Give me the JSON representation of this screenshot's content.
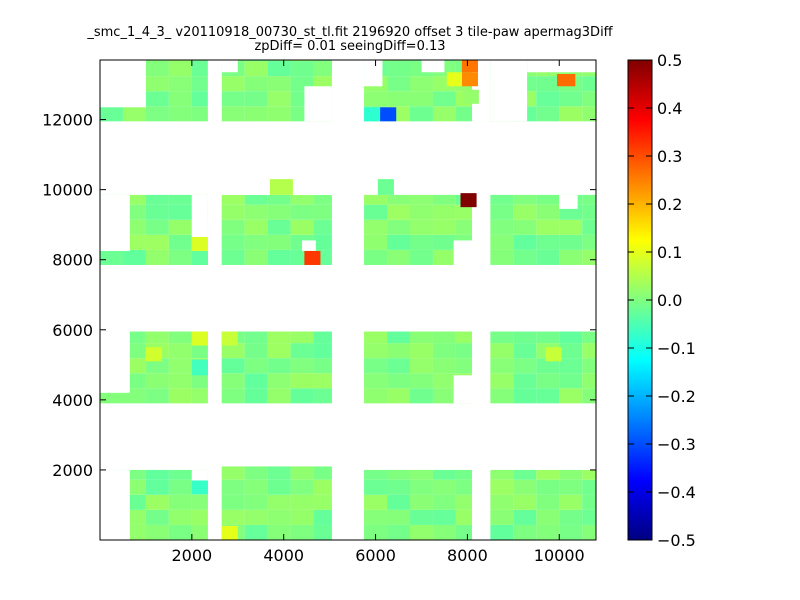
{
  "chart_data": {
    "type": "heatmap",
    "title": "_smc_1_4_3_ v20110918_00730_st_tl.fit 2196920 offset 3 tile-paw apermag3Diff",
    "subtitle": "zpDiff= 0.01 seeingDiff=0.13",
    "xlabel": "",
    "ylabel": "",
    "xlim": [
      0,
      10800
    ],
    "ylim": [
      0,
      13700
    ],
    "xticks": [
      2000,
      4000,
      6000,
      8000,
      10000
    ],
    "yticks": [
      2000,
      4000,
      6000,
      8000,
      10000,
      12000
    ],
    "colorbar": {
      "colormap": "jet",
      "vmin": -0.5,
      "vmax": 0.5,
      "ticks": [
        0.5,
        0.4,
        0.3,
        0.2,
        0.1,
        0.0,
        -0.1,
        -0.2,
        -0.3,
        -0.4,
        -0.5
      ],
      "tick_labels": [
        "0.5",
        "0.4",
        "0.3",
        "0.2",
        "0.1",
        "0.0",
        "−0.1",
        "−0.2",
        "−0.3",
        "−0.4",
        "−0.5"
      ]
    },
    "cell_width": 500,
    "cell_height": 430,
    "default_value": 0.0,
    "regions": [
      {
        "x": [
          0,
          2350
        ],
        "y": [
          0,
          2000
        ]
      },
      {
        "x": [
          2650,
          5050
        ],
        "y": [
          0,
          2100
        ]
      },
      {
        "x": [
          5750,
          8100
        ],
        "y": [
          0,
          2000
        ]
      },
      {
        "x": [
          8500,
          10800
        ],
        "y": [
          0,
          2000
        ]
      },
      {
        "x": [
          0,
          2350
        ],
        "y": [
          3900,
          5950
        ]
      },
      {
        "x": [
          2650,
          5050
        ],
        "y": [
          3900,
          5950
        ]
      },
      {
        "x": [
          5750,
          8100
        ],
        "y": [
          3900,
          5950
        ]
      },
      {
        "x": [
          8500,
          10800
        ],
        "y": [
          3900,
          5950
        ]
      },
      {
        "x": [
          0,
          2350
        ],
        "y": [
          7850,
          9850
        ]
      },
      {
        "x": [
          2650,
          5050
        ],
        "y": [
          7850,
          9850
        ]
      },
      {
        "x": [
          5750,
          8100
        ],
        "y": [
          7850,
          9850
        ]
      },
      {
        "x": [
          8500,
          10800
        ],
        "y": [
          7850,
          9850
        ]
      },
      {
        "x": [
          0,
          2350
        ],
        "y": [
          11950,
          13700
        ]
      },
      {
        "x": [
          2650,
          5050
        ],
        "y": [
          11950,
          13700
        ]
      },
      {
        "x": [
          5750,
          8100
        ],
        "y": [
          11950,
          13700
        ]
      },
      {
        "x": [
          8500,
          10800
        ],
        "y": [
          11950,
          13700
        ]
      }
    ],
    "missing": [
      {
        "x": [
          0,
          650
        ],
        "y": [
          0,
          2000
        ]
      },
      {
        "x": [
          0,
          1000
        ],
        "y": [
          12350,
          13700
        ]
      },
      {
        "x": [
          2350,
          2650
        ],
        "y": [
          11950,
          13700
        ]
      },
      {
        "x": [
          2650,
          3000
        ],
        "y": [
          13350,
          13700
        ]
      },
      {
        "x": [
          4450,
          5050
        ],
        "y": [
          11950,
          12950
        ]
      },
      {
        "x": [
          5750,
          6150
        ],
        "y": [
          12950,
          13700
        ]
      },
      {
        "x": [
          7000,
          7500
        ],
        "y": [
          13350,
          13700
        ]
      },
      {
        "x": [
          8500,
          9300
        ],
        "y": [
          11950,
          13700
        ]
      },
      {
        "x": [
          9300,
          10800
        ],
        "y": [
          13350,
          13700
        ]
      },
      {
        "x": [
          0,
          650
        ],
        "y": [
          8250,
          9850
        ]
      },
      {
        "x": [
          0,
          650
        ],
        "y": [
          4200,
          5950
        ]
      },
      {
        "x": [
          2000,
          2350
        ],
        "y": [
          8250,
          9850
        ]
      },
      {
        "x": [
          2650,
          5050
        ],
        "y": [
          9850,
          10300
        ]
      },
      {
        "x": [
          4400,
          4700
        ],
        "y": [
          8250,
          8550
        ]
      },
      {
        "x": [
          7700,
          8100
        ],
        "y": [
          7850,
          8550
        ]
      },
      {
        "x": [
          7700,
          8100
        ],
        "y": [
          3900,
          4700
        ]
      },
      {
        "x": [
          10000,
          10400
        ],
        "y": [
          9450,
          9850
        ]
      },
      {
        "x": [
          2000,
          2350
        ],
        "y": [
          1600,
          2000
        ]
      }
    ],
    "extra_cells": [
      {
        "x": 3700,
        "y": 9850,
        "w": 500,
        "h": 450,
        "value": 0.05
      },
      {
        "x": 6050,
        "y": 9850,
        "w": 350,
        "h": 450,
        "value": -0.02
      }
    ],
    "anomalies": [
      {
        "x": 7880,
        "y": 13350,
        "w": 350,
        "h": 350,
        "value": 0.26
      },
      {
        "x": 7880,
        "y": 12950,
        "w": 350,
        "h": 400,
        "value": 0.24
      },
      {
        "x": 7550,
        "y": 12950,
        "w": 330,
        "h": 400,
        "value": 0.1
      },
      {
        "x": 9950,
        "y": 12950,
        "w": 400,
        "h": 350,
        "value": 0.27
      },
      {
        "x": 5750,
        "y": 11950,
        "w": 350,
        "h": 400,
        "value": -0.08
      },
      {
        "x": 6100,
        "y": 11950,
        "w": 350,
        "h": 400,
        "value": -0.3
      },
      {
        "x": 7850,
        "y": 9500,
        "w": 350,
        "h": 400,
        "value": 0.5
      },
      {
        "x": 4450,
        "y": 7850,
        "w": 350,
        "h": 400,
        "value": 0.32
      },
      {
        "x": 2000,
        "y": 7850,
        "w": 350,
        "h": 400,
        "value": -0.03
      },
      {
        "x": 2000,
        "y": 8250,
        "w": 350,
        "h": 400,
        "value": 0.09
      },
      {
        "x": 2000,
        "y": 5550,
        "w": 350,
        "h": 400,
        "value": 0.09
      },
      {
        "x": 2000,
        "y": 4700,
        "w": 350,
        "h": 450,
        "value": -0.06
      },
      {
        "x": 2650,
        "y": 5550,
        "w": 350,
        "h": 400,
        "value": 0.07
      },
      {
        "x": 2000,
        "y": 1300,
        "w": 350,
        "h": 400,
        "value": -0.07
      },
      {
        "x": 2650,
        "y": 0,
        "w": 350,
        "h": 400,
        "value": 0.1
      },
      {
        "x": 1000,
        "y": 5100,
        "w": 350,
        "h": 400,
        "value": 0.08
      },
      {
        "x": 9700,
        "y": 5100,
        "w": 350,
        "h": 400,
        "value": 0.07
      },
      {
        "x": 7900,
        "y": 12450,
        "w": 350,
        "h": 400,
        "value": 0.02
      }
    ]
  }
}
